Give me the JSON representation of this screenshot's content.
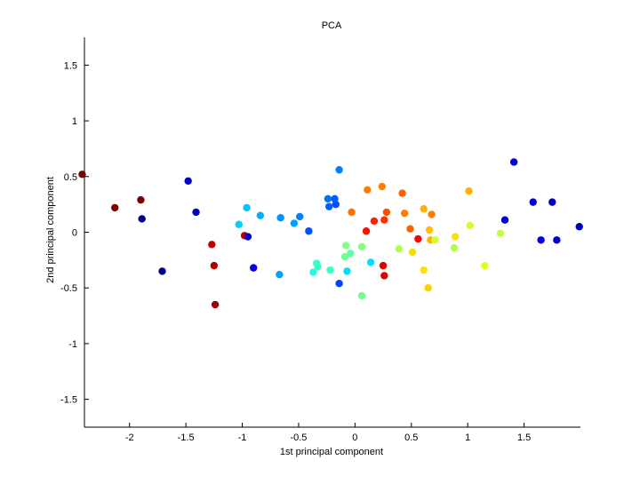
{
  "chart_data": {
    "type": "scatter",
    "title": "PCA",
    "xlabel": "1st principal component",
    "ylabel": "2nd principal component",
    "xlim": [
      -2.4,
      2.0
    ],
    "ylim": [
      -1.75,
      1.75
    ],
    "xticks": [
      -2,
      -1.5,
      -1,
      -0.5,
      0,
      0.5,
      1,
      1.5
    ],
    "xtick_labels": [
      "-2",
      "-1.5",
      "-1",
      "-0.5",
      "0",
      "0.5",
      "1",
      "1.5"
    ],
    "yticks": [
      -1.5,
      -1,
      -0.5,
      0,
      0.5,
      1,
      1.5
    ],
    "ytick_labels": [
      "-1.5",
      "-1",
      "-0.5",
      "0",
      "0.5",
      "1",
      "1.5"
    ],
    "grid": false,
    "box": "left-bottom axes only",
    "marker_color_scale": "jet",
    "points": [
      {
        "x": -2.42,
        "y": 0.52,
        "color": "#800000"
      },
      {
        "x": -2.13,
        "y": 0.22,
        "color": "#800000"
      },
      {
        "x": -1.9,
        "y": 0.29,
        "color": "#800000"
      },
      {
        "x": -1.89,
        "y": 0.12,
        "color": "#000080"
      },
      {
        "x": -1.71,
        "y": -0.35,
        "color": "#000090"
      },
      {
        "x": -1.48,
        "y": 0.46,
        "color": "#0000c8"
      },
      {
        "x": -1.41,
        "y": 0.18,
        "color": "#0000c0"
      },
      {
        "x": -1.27,
        "y": -0.11,
        "color": "#c00000"
      },
      {
        "x": -1.25,
        "y": -0.3,
        "color": "#b00000"
      },
      {
        "x": -1.24,
        "y": -0.65,
        "color": "#a00000"
      },
      {
        "x": -1.03,
        "y": 0.07,
        "color": "#00d0ff"
      },
      {
        "x": -0.98,
        "y": -0.03,
        "color": "#c00000"
      },
      {
        "x": -0.96,
        "y": 0.22,
        "color": "#00c0ff"
      },
      {
        "x": -0.95,
        "y": -0.04,
        "color": "#0000d0"
      },
      {
        "x": -0.9,
        "y": -0.32,
        "color": "#0000f0"
      },
      {
        "x": -0.84,
        "y": 0.15,
        "color": "#00b0ff"
      },
      {
        "x": -0.67,
        "y": -0.38,
        "color": "#00a0ff"
      },
      {
        "x": -0.66,
        "y": 0.13,
        "color": "#0090ff"
      },
      {
        "x": -0.54,
        "y": 0.08,
        "color": "#00a0ff"
      },
      {
        "x": -0.49,
        "y": 0.14,
        "color": "#0080ff"
      },
      {
        "x": -0.41,
        "y": 0.01,
        "color": "#0050ff"
      },
      {
        "x": -0.37,
        "y": -0.36,
        "color": "#20ffe0"
      },
      {
        "x": -0.34,
        "y": -0.28,
        "color": "#30ffd0"
      },
      {
        "x": -0.33,
        "y": -0.31,
        "color": "#40ffc0"
      },
      {
        "x": -0.24,
        "y": 0.3,
        "color": "#0070ff"
      },
      {
        "x": -0.23,
        "y": 0.23,
        "color": "#0060ff"
      },
      {
        "x": -0.22,
        "y": -0.34,
        "color": "#40ffc0"
      },
      {
        "x": -0.18,
        "y": 0.3,
        "color": "#0060ff"
      },
      {
        "x": -0.17,
        "y": 0.25,
        "color": "#0050ff"
      },
      {
        "x": -0.14,
        "y": 0.56,
        "color": "#0080ff"
      },
      {
        "x": -0.14,
        "y": -0.46,
        "color": "#0040ff"
      },
      {
        "x": -0.09,
        "y": -0.22,
        "color": "#70ff90"
      },
      {
        "x": -0.08,
        "y": -0.12,
        "color": "#80ff80"
      },
      {
        "x": -0.07,
        "y": -0.35,
        "color": "#00e0f0"
      },
      {
        "x": -0.04,
        "y": -0.19,
        "color": "#60ffa0"
      },
      {
        "x": -0.03,
        "y": 0.18,
        "color": "#ff7000"
      },
      {
        "x": 0.06,
        "y": -0.13,
        "color": "#80ff80"
      },
      {
        "x": 0.06,
        "y": -0.57,
        "color": "#70ff90"
      },
      {
        "x": 0.1,
        "y": 0.01,
        "color": "#ff1000"
      },
      {
        "x": 0.11,
        "y": 0.38,
        "color": "#ff8000"
      },
      {
        "x": 0.14,
        "y": -0.27,
        "color": "#00e0ff"
      },
      {
        "x": 0.17,
        "y": 0.1,
        "color": "#ff2000"
      },
      {
        "x": 0.24,
        "y": 0.41,
        "color": "#ff8000"
      },
      {
        "x": 0.25,
        "y": -0.3,
        "color": "#e00000"
      },
      {
        "x": 0.26,
        "y": 0.11,
        "color": "#ff3000"
      },
      {
        "x": 0.26,
        "y": -0.39,
        "color": "#e00000"
      },
      {
        "x": 0.28,
        "y": 0.18,
        "color": "#ff5000"
      },
      {
        "x": 0.39,
        "y": -0.15,
        "color": "#b0ff50"
      },
      {
        "x": 0.42,
        "y": 0.35,
        "color": "#ff6000"
      },
      {
        "x": 0.44,
        "y": 0.17,
        "color": "#ff8000"
      },
      {
        "x": 0.49,
        "y": 0.03,
        "color": "#ff6000"
      },
      {
        "x": 0.51,
        "y": -0.18,
        "color": "#f0e000"
      },
      {
        "x": 0.56,
        "y": -0.06,
        "color": "#ff0000"
      },
      {
        "x": 0.61,
        "y": -0.34,
        "color": "#ffe000"
      },
      {
        "x": 0.61,
        "y": 0.21,
        "color": "#ffb000"
      },
      {
        "x": 0.65,
        "y": -0.5,
        "color": "#ffd000"
      },
      {
        "x": 0.66,
        "y": 0.02,
        "color": "#ffc000"
      },
      {
        "x": 0.67,
        "y": -0.07,
        "color": "#ffb000"
      },
      {
        "x": 0.68,
        "y": 0.16,
        "color": "#ff8000"
      },
      {
        "x": 0.71,
        "y": -0.07,
        "color": "#d0ff30"
      },
      {
        "x": 0.88,
        "y": -0.14,
        "color": "#b0ff50"
      },
      {
        "x": 0.89,
        "y": -0.04,
        "color": "#ffe000"
      },
      {
        "x": 1.01,
        "y": 0.37,
        "color": "#ffb000"
      },
      {
        "x": 1.02,
        "y": 0.06,
        "color": "#d0ff30"
      },
      {
        "x": 1.15,
        "y": -0.3,
        "color": "#e0ff20"
      },
      {
        "x": 1.29,
        "y": -0.01,
        "color": "#c0ff40"
      },
      {
        "x": 1.33,
        "y": 0.11,
        "color": "#0000d0"
      },
      {
        "x": 1.41,
        "y": 0.63,
        "color": "#0000e0"
      },
      {
        "x": 1.58,
        "y": 0.27,
        "color": "#0000d0"
      },
      {
        "x": 1.65,
        "y": -0.07,
        "color": "#0000e0"
      },
      {
        "x": 1.75,
        "y": 0.27,
        "color": "#0000c0"
      },
      {
        "x": 1.79,
        "y": -0.07,
        "color": "#0000d0"
      },
      {
        "x": 1.99,
        "y": 0.05,
        "color": "#0000b0"
      }
    ]
  }
}
